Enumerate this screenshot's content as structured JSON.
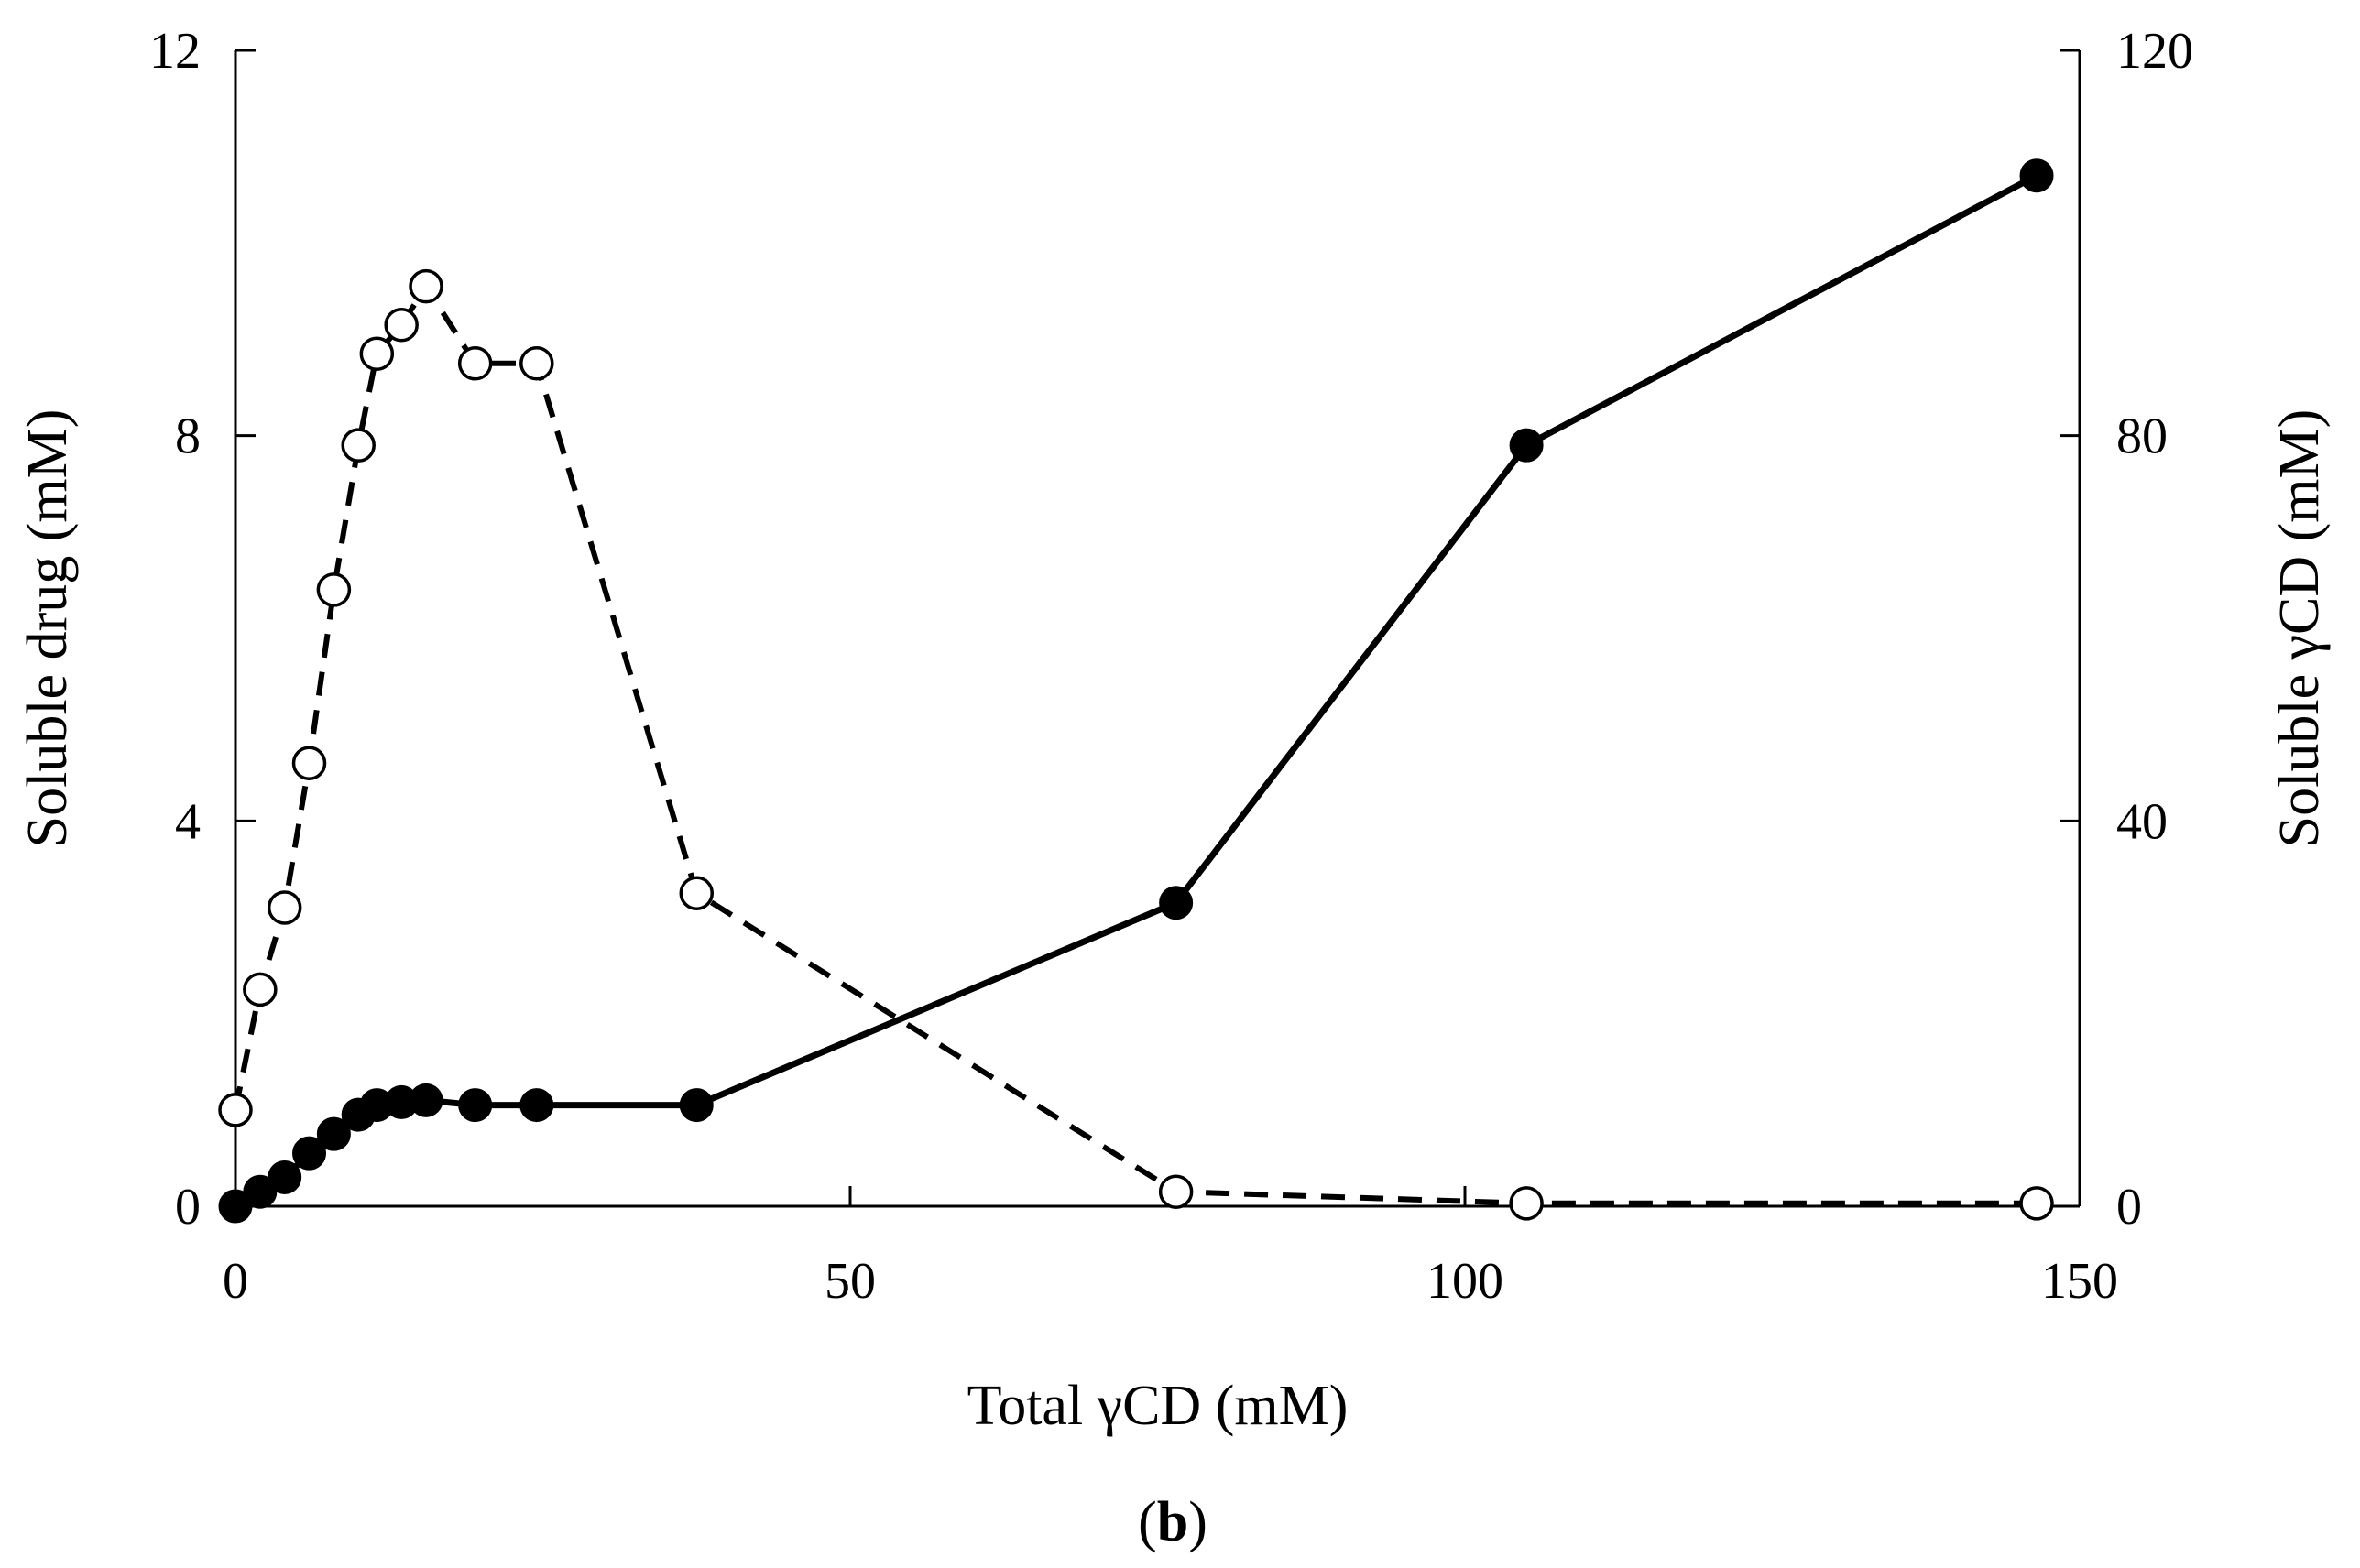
{
  "chart_data": {
    "type": "line",
    "panel_label": "b",
    "xlabel": "Total γCD (mM)",
    "ylabel_left": "Soluble drug (mM)",
    "ylabel_right": "Soluble γCD (mM)",
    "xlim": [
      0,
      150
    ],
    "ylim_left": [
      0,
      12
    ],
    "ylim_right": [
      0,
      120
    ],
    "x_ticks": [
      "0",
      "50",
      "100",
      "150"
    ],
    "y_ticks_left": [
      "0",
      "4",
      "8",
      "12"
    ],
    "y_ticks_right": [
      "0",
      "40",
      "80",
      "120"
    ],
    "series": [
      {
        "name": "Soluble drug",
        "axis": "left",
        "marker": "filled-circle",
        "line": "solid",
        "x": [
          0,
          2,
          4,
          6,
          8,
          10,
          11.5,
          13.5,
          15.5,
          19.5,
          24.5,
          37.5,
          76.5,
          105,
          146.5
        ],
        "y": [
          0,
          0.15,
          0.3,
          0.55,
          0.75,
          0.95,
          1.05,
          1.08,
          1.1,
          1.05,
          1.05,
          1.05,
          3.15,
          7.9,
          10.7
        ]
      },
      {
        "name": "Soluble γCD",
        "axis": "right",
        "marker": "open-circle",
        "line": "dashed",
        "x": [
          0,
          2,
          4,
          6,
          8,
          10,
          11.5,
          13.5,
          15.5,
          19.5,
          24.5,
          37.5,
          76.5,
          105,
          146.5
        ],
        "y": [
          10,
          22.5,
          31,
          46,
          64,
          79,
          88.5,
          91.5,
          95.5,
          87.5,
          87.5,
          32.5,
          1.5,
          0.3,
          0.3
        ]
      }
    ]
  }
}
